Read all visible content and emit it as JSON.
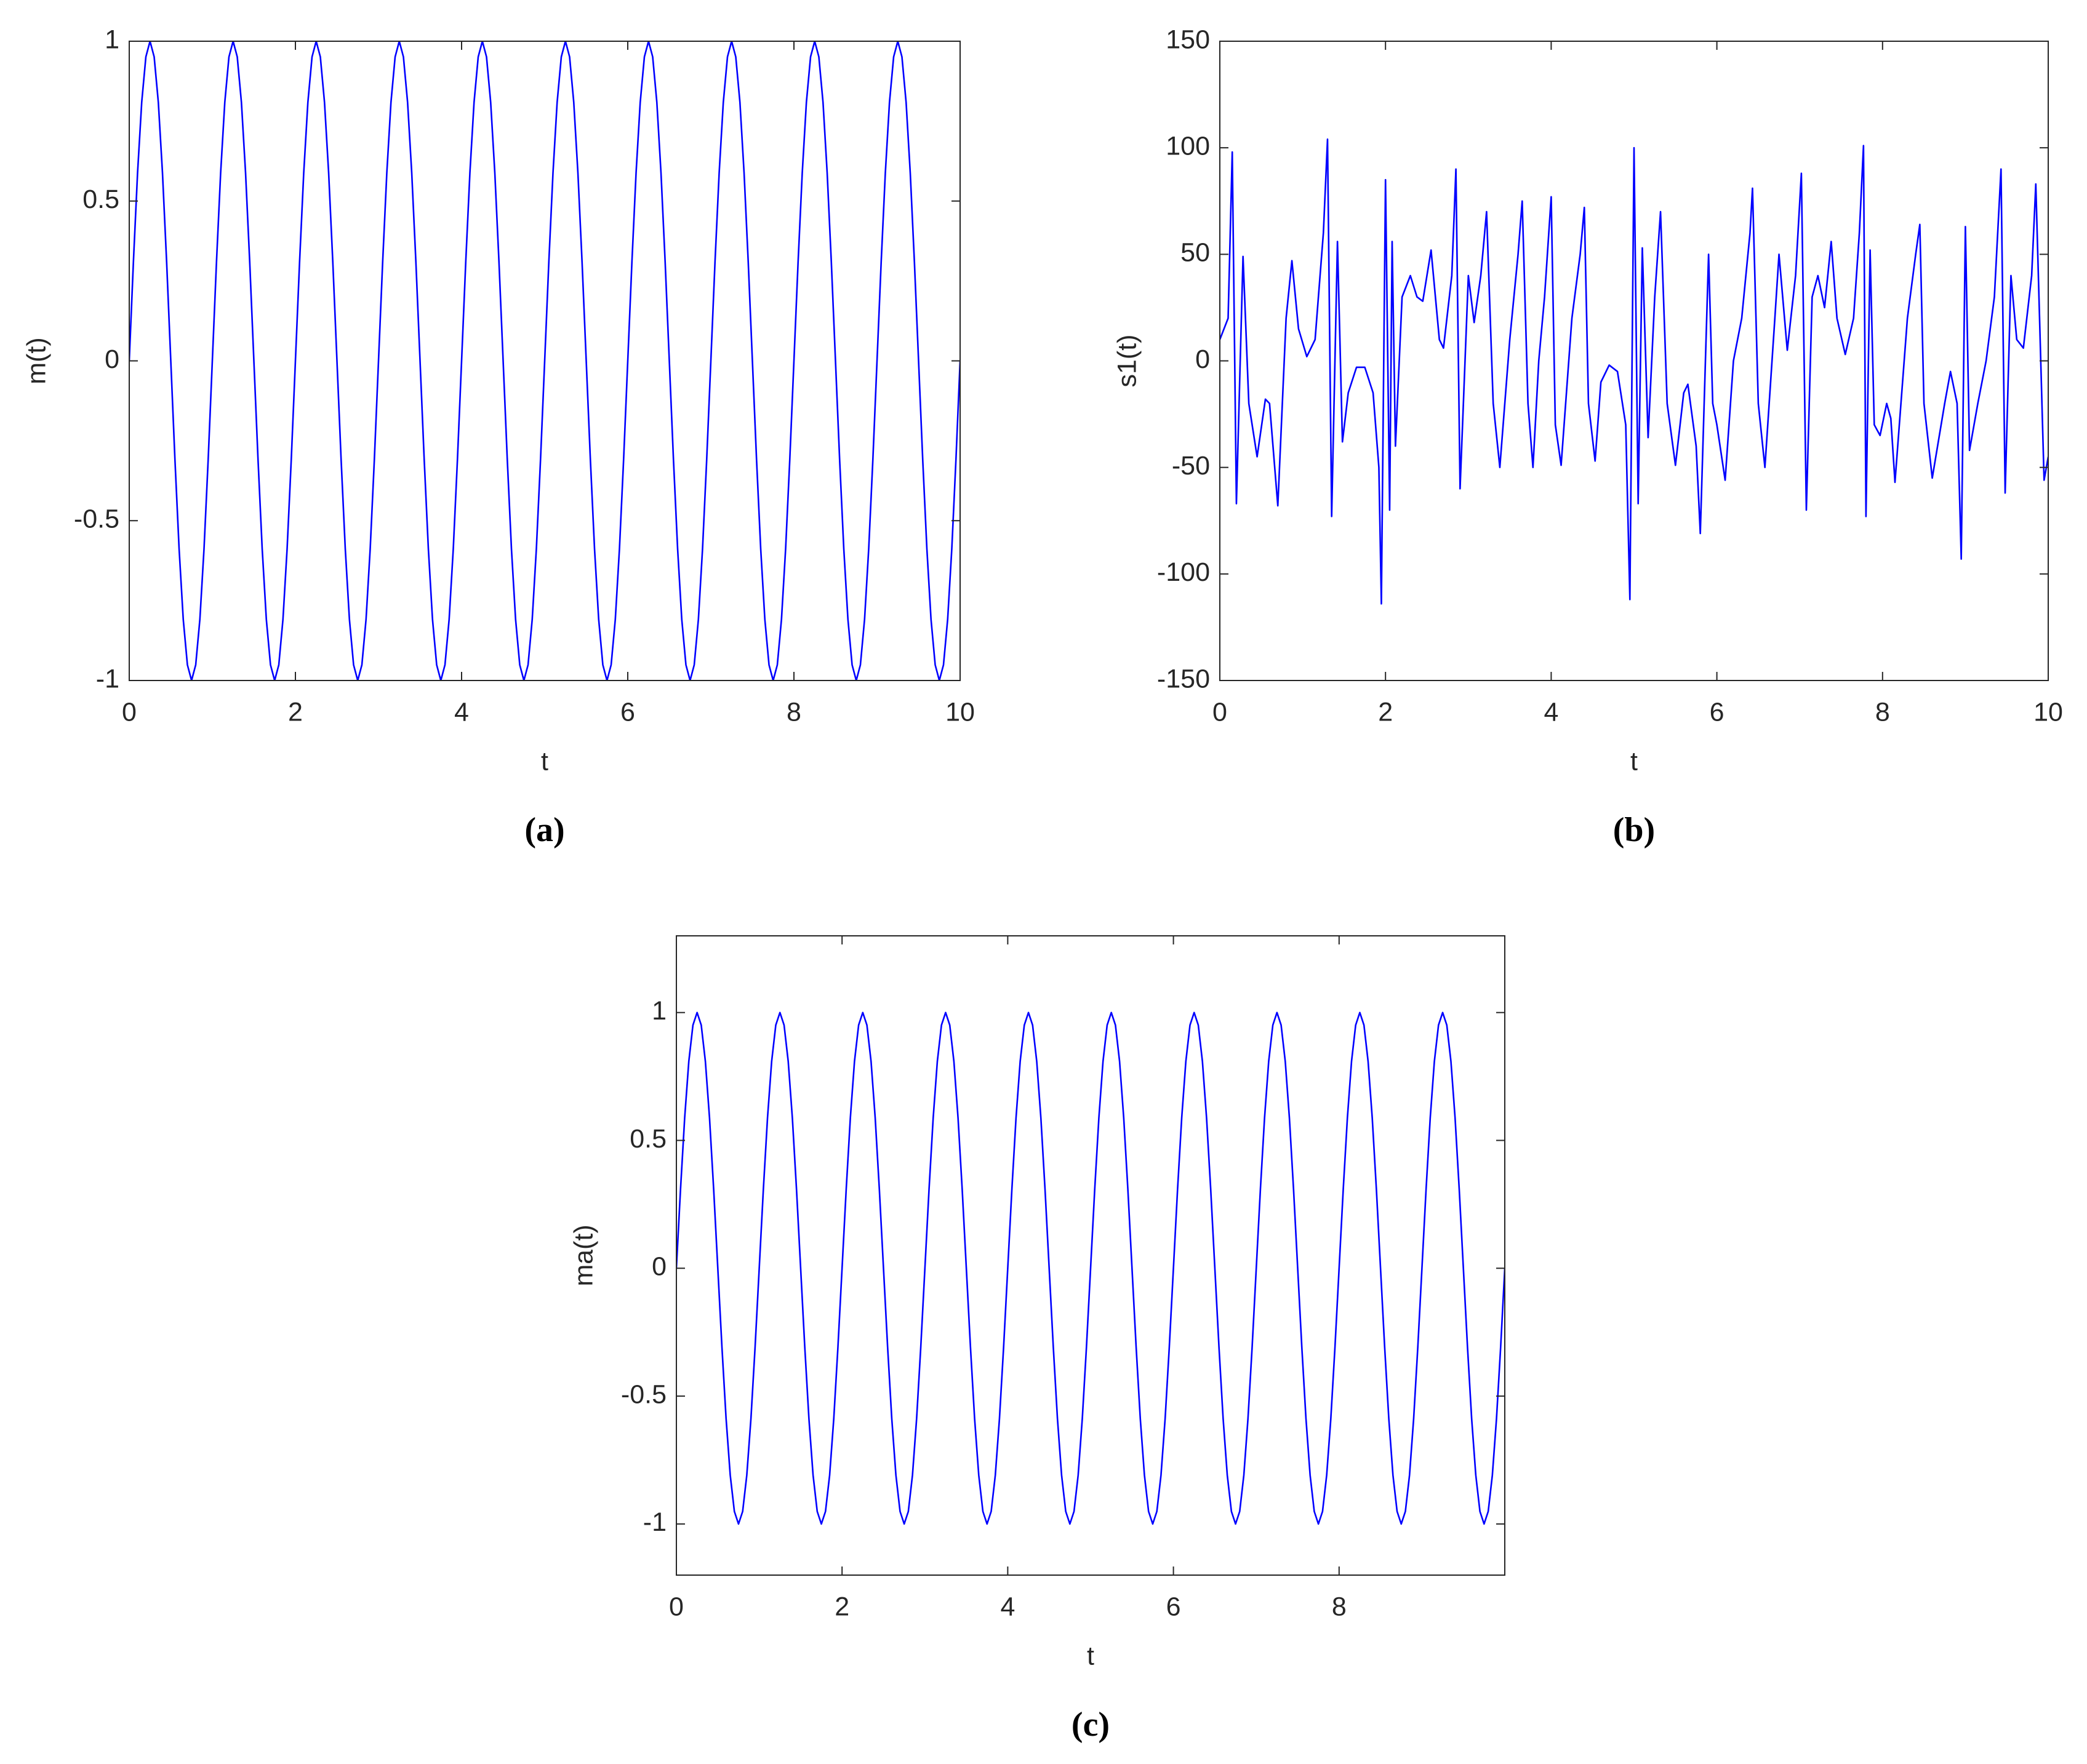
{
  "chart_data": [
    {
      "type": "line",
      "caption": "(a)",
      "x_label": "t",
      "y_label": "m(t)",
      "xlim": [
        0,
        10
      ],
      "xticks": [
        0,
        2,
        4,
        6,
        8,
        10
      ],
      "ylim": [
        -1,
        1
      ],
      "yticks": [
        -1,
        -0.5,
        0,
        0.5,
        1
      ],
      "grid": false,
      "x": [
        0,
        0.05,
        0.1,
        0.15,
        0.2,
        0.25,
        0.3,
        0.35,
        0.4,
        0.45,
        0.5,
        0.55,
        0.6,
        0.65,
        0.7,
        0.75,
        0.8,
        0.85,
        0.9,
        0.95,
        1,
        1.05,
        1.1,
        1.15,
        1.2,
        1.25,
        1.3,
        1.35,
        1.4,
        1.45,
        1.5,
        1.55,
        1.6,
        1.65,
        1.7,
        1.75,
        1.8,
        1.85,
        1.9,
        1.95,
        2,
        2.05,
        2.1,
        2.15,
        2.2,
        2.25,
        2.3,
        2.35,
        2.4,
        2.45,
        2.5,
        2.55,
        2.6,
        2.65,
        2.7,
        2.75,
        2.8,
        2.85,
        2.9,
        2.95,
        3,
        3.05,
        3.1,
        3.15,
        3.2,
        3.25,
        3.3,
        3.35,
        3.4,
        3.45,
        3.5,
        3.55,
        3.6,
        3.65,
        3.7,
        3.75,
        3.8,
        3.85,
        3.9,
        3.95,
        4,
        4.05,
        4.1,
        4.15,
        4.2,
        4.25,
        4.3,
        4.35,
        4.4,
        4.45,
        4.5,
        4.55,
        4.6,
        4.65,
        4.7,
        4.75,
        4.8,
        4.85,
        4.9,
        4.95,
        5,
        5.05,
        5.1,
        5.15,
        5.2,
        5.25,
        5.3,
        5.35,
        5.4,
        5.45,
        5.5,
        5.55,
        5.6,
        5.65,
        5.7,
        5.75,
        5.8,
        5.85,
        5.9,
        5.95,
        6,
        6.05,
        6.1,
        6.15,
        6.2,
        6.25,
        6.3,
        6.35,
        6.4,
        6.45,
        6.5,
        6.55,
        6.6,
        6.65,
        6.7,
        6.75,
        6.8,
        6.85,
        6.9,
        6.95,
        7,
        7.05,
        7.1,
        7.15,
        7.2,
        7.25,
        7.3,
        7.35,
        7.4,
        7.45,
        7.5,
        7.55,
        7.6,
        7.65,
        7.7,
        7.75,
        7.8,
        7.85,
        7.9,
        7.95,
        8,
        8.05,
        8.1,
        8.15,
        8.2,
        8.25,
        8.3,
        8.35,
        8.4,
        8.45,
        8.5,
        8.55,
        8.6,
        8.65,
        8.7,
        8.75,
        8.8,
        8.85,
        8.9,
        8.95,
        9,
        9.05,
        9.1,
        9.15,
        9.2,
        9.25,
        9.3,
        9.35,
        9.4,
        9.45,
        9.5,
        9.55,
        9.6,
        9.65,
        9.7,
        9.75,
        9.8,
        9.85,
        9.9,
        9.95,
        10
      ],
      "series": [
        {
          "color": "#0000ff",
          "values": [
            0,
            0.309,
            0.588,
            0.809,
            0.951,
            1,
            0.951,
            0.809,
            0.588,
            0.309,
            0,
            -0.309,
            -0.588,
            -0.809,
            -0.951,
            -1,
            -0.951,
            -0.809,
            -0.588,
            -0.309,
            0,
            0.309,
            0.588,
            0.809,
            0.951,
            1,
            0.951,
            0.809,
            0.588,
            0.309,
            0,
            -0.309,
            -0.588,
            -0.809,
            -0.951,
            -1,
            -0.951,
            -0.809,
            -0.588,
            -0.309,
            0,
            0.309,
            0.588,
            0.809,
            0.951,
            1,
            0.951,
            0.809,
            0.588,
            0.309,
            0,
            -0.309,
            -0.588,
            -0.809,
            -0.951,
            -1,
            -0.951,
            -0.809,
            -0.588,
            -0.309,
            0,
            0.309,
            0.588,
            0.809,
            0.951,
            1,
            0.951,
            0.809,
            0.588,
            0.309,
            0,
            -0.309,
            -0.588,
            -0.809,
            -0.951,
            -1,
            -0.951,
            -0.809,
            -0.588,
            -0.309,
            0,
            0.309,
            0.588,
            0.809,
            0.951,
            1,
            0.951,
            0.809,
            0.588,
            0.309,
            0,
            -0.309,
            -0.588,
            -0.809,
            -0.951,
            -1,
            -0.951,
            -0.809,
            -0.588,
            -0.309,
            0,
            0.309,
            0.588,
            0.809,
            0.951,
            1,
            0.951,
            0.809,
            0.588,
            0.309,
            0,
            -0.309,
            -0.588,
            -0.809,
            -0.951,
            -1,
            -0.951,
            -0.809,
            -0.588,
            -0.309,
            0,
            0.309,
            0.588,
            0.809,
            0.951,
            1,
            0.951,
            0.809,
            0.588,
            0.309,
            0,
            -0.309,
            -0.588,
            -0.809,
            -0.951,
            -1,
            -0.951,
            -0.809,
            -0.588,
            -0.309,
            0,
            0.309,
            0.588,
            0.809,
            0.951,
            1,
            0.951,
            0.809,
            0.588,
            0.309,
            0,
            -0.309,
            -0.588,
            -0.809,
            -0.951,
            -1,
            -0.951,
            -0.809,
            -0.588,
            -0.309,
            0,
            0.309,
            0.588,
            0.809,
            0.951,
            1,
            0.951,
            0.809,
            0.588,
            0.309,
            0,
            -0.309,
            -0.588,
            -0.809,
            -0.951,
            -1,
            -0.951,
            -0.809,
            -0.588,
            -0.309,
            0,
            0.309,
            0.588,
            0.809,
            0.951,
            1,
            0.951,
            0.809,
            0.588,
            0.309,
            0,
            -0.309,
            -0.588,
            -0.809,
            -0.951,
            -1,
            -0.951,
            -0.809,
            -0.588,
            -0.309,
            0
          ]
        }
      ]
    },
    {
      "type": "line",
      "caption": "(b)",
      "x_label": "t",
      "y_label": "s1(t)",
      "xlim": [
        0,
        10
      ],
      "xticks": [
        0,
        2,
        4,
        6,
        8,
        10
      ],
      "ylim": [
        -150,
        150
      ],
      "yticks": [
        -150,
        -100,
        -50,
        0,
        50,
        100,
        150
      ],
      "grid": false,
      "x": [
        0,
        0.1,
        0.15,
        0.2,
        0.28,
        0.35,
        0.45,
        0.55,
        0.6,
        0.7,
        0.8,
        0.87,
        0.95,
        1.05,
        1.15,
        1.25,
        1.3,
        1.35,
        1.42,
        1.48,
        1.55,
        1.65,
        1.75,
        1.85,
        1.92,
        1.95,
        2,
        2.05,
        2.08,
        2.12,
        2.2,
        2.3,
        2.38,
        2.45,
        2.55,
        2.65,
        2.7,
        2.8,
        2.85,
        2.9,
        3,
        3.07,
        3.15,
        3.22,
        3.3,
        3.38,
        3.5,
        3.6,
        3.65,
        3.72,
        3.78,
        3.85,
        3.92,
        4,
        4.05,
        4.12,
        4.25,
        4.35,
        4.4,
        4.45,
        4.53,
        4.6,
        4.7,
        4.8,
        4.9,
        4.95,
        5,
        5.05,
        5.1,
        5.17,
        5.25,
        5.32,
        5.4,
        5.5,
        5.6,
        5.65,
        5.75,
        5.8,
        5.9,
        5.95,
        6,
        6.1,
        6.2,
        6.3,
        6.4,
        6.43,
        6.5,
        6.58,
        6.7,
        6.75,
        6.85,
        6.95,
        7.02,
        7.08,
        7.15,
        7.22,
        7.3,
        7.38,
        7.45,
        7.55,
        7.65,
        7.72,
        7.77,
        7.8,
        7.85,
        7.9,
        7.97,
        8.05,
        8.1,
        8.15,
        8.3,
        8.4,
        8.45,
        8.5,
        8.6,
        8.75,
        8.82,
        8.9,
        8.95,
        9,
        9.05,
        9.15,
        9.25,
        9.35,
        9.43,
        9.48,
        9.55,
        9.62,
        9.7,
        9.8,
        9.85,
        9.95,
        10
      ],
      "series": [
        {
          "color": "#0000ff",
          "values": [
            10,
            20,
            98,
            -67,
            49,
            -20,
            -45,
            -18,
            -20,
            -68,
            20,
            47,
            15,
            2,
            10,
            60,
            104,
            -73,
            56,
            -38,
            -15,
            -3,
            -3,
            -15,
            -50,
            -114,
            85,
            -70,
            56,
            -40,
            30,
            40,
            30,
            28,
            52,
            10,
            6,
            40,
            90,
            -60,
            40,
            18,
            40,
            70,
            -20,
            -50,
            10,
            50,
            75,
            -20,
            -50,
            0,
            30,
            77,
            -30,
            -49,
            20,
            50,
            72,
            -20,
            -47,
            -10,
            -2,
            -5,
            -30,
            -112,
            100,
            -67,
            53,
            -36,
            30,
            70,
            -20,
            -49,
            -15,
            -11,
            -40,
            -81,
            50,
            -20,
            -30,
            -56,
            0,
            20,
            60,
            81,
            -20,
            -50,
            20,
            50,
            5,
            40,
            88,
            -70,
            30,
            40,
            25,
            56,
            20,
            3,
            20,
            60,
            101,
            -73,
            52,
            -30,
            -35,
            -20,
            -27,
            -57,
            20,
            50,
            64,
            -20,
            -55,
            -20,
            -5,
            -20,
            -93,
            63,
            -42,
            -20,
            0,
            30,
            90,
            -62,
            40,
            10,
            6,
            40,
            83,
            -56,
            -45
          ]
        }
      ]
    },
    {
      "type": "line",
      "caption": "(c)",
      "x_label": "t",
      "y_label": "ma(t)",
      "xlim": [
        0,
        10
      ],
      "xticks": [
        0,
        2,
        4,
        6,
        8
      ],
      "ylim": [
        -1.2,
        1.3
      ],
      "yticks": [
        -1,
        -0.5,
        0,
        0.5,
        1
      ],
      "grid": false,
      "x": [
        0,
        0.05,
        0.1,
        0.15,
        0.2,
        0.25,
        0.3,
        0.35,
        0.4,
        0.45,
        0.5,
        0.55,
        0.6,
        0.65,
        0.7,
        0.75,
        0.8,
        0.85,
        0.9,
        0.95,
        1,
        1.05,
        1.1,
        1.15,
        1.2,
        1.25,
        1.3,
        1.35,
        1.4,
        1.45,
        1.5,
        1.55,
        1.6,
        1.65,
        1.7,
        1.75,
        1.8,
        1.85,
        1.9,
        1.95,
        2,
        2.05,
        2.1,
        2.15,
        2.2,
        2.25,
        2.3,
        2.35,
        2.4,
        2.45,
        2.5,
        2.55,
        2.6,
        2.65,
        2.7,
        2.75,
        2.8,
        2.85,
        2.9,
        2.95,
        3,
        3.05,
        3.1,
        3.15,
        3.2,
        3.25,
        3.3,
        3.35,
        3.4,
        3.45,
        3.5,
        3.55,
        3.6,
        3.65,
        3.7,
        3.75,
        3.8,
        3.85,
        3.9,
        3.95,
        4,
        4.05,
        4.1,
        4.15,
        4.2,
        4.25,
        4.3,
        4.35,
        4.4,
        4.45,
        4.5,
        4.55,
        4.6,
        4.65,
        4.7,
        4.75,
        4.8,
        4.85,
        4.9,
        4.95,
        5,
        5.05,
        5.1,
        5.15,
        5.2,
        5.25,
        5.3,
        5.35,
        5.4,
        5.45,
        5.5,
        5.55,
        5.6,
        5.65,
        5.7,
        5.75,
        5.8,
        5.85,
        5.9,
        5.95,
        6,
        6.05,
        6.1,
        6.15,
        6.2,
        6.25,
        6.3,
        6.35,
        6.4,
        6.45,
        6.5,
        6.55,
        6.6,
        6.65,
        6.7,
        6.75,
        6.8,
        6.85,
        6.9,
        6.95,
        7,
        7.05,
        7.1,
        7.15,
        7.2,
        7.25,
        7.3,
        7.35,
        7.4,
        7.45,
        7.5,
        7.55,
        7.6,
        7.65,
        7.7,
        7.75,
        7.8,
        7.85,
        7.9,
        7.95,
        8,
        8.05,
        8.1,
        8.15,
        8.2,
        8.25,
        8.3,
        8.35,
        8.4,
        8.45,
        8.5,
        8.55,
        8.6,
        8.65,
        8.7,
        8.75,
        8.8,
        8.85,
        8.9,
        8.95,
        9,
        9.05,
        9.1,
        9.15,
        9.2,
        9.25,
        9.3,
        9.35,
        9.4,
        9.45,
        9.5,
        9.55,
        9.6,
        9.65,
        9.7,
        9.75,
        9.8,
        9.85,
        9.9,
        9.95,
        10
      ],
      "series": [
        {
          "color": "#0000ff",
          "values": [
            0,
            0.309,
            0.588,
            0.809,
            0.951,
            1,
            0.951,
            0.809,
            0.588,
            0.309,
            0,
            -0.309,
            -0.588,
            -0.809,
            -0.951,
            -1,
            -0.951,
            -0.809,
            -0.588,
            -0.309,
            0,
            0.309,
            0.588,
            0.809,
            0.951,
            1,
            0.951,
            0.809,
            0.588,
            0.309,
            0,
            -0.309,
            -0.588,
            -0.809,
            -0.951,
            -1,
            -0.951,
            -0.809,
            -0.588,
            -0.309,
            0,
            0.309,
            0.588,
            0.809,
            0.951,
            1,
            0.951,
            0.809,
            0.588,
            0.309,
            0,
            -0.309,
            -0.588,
            -0.809,
            -0.951,
            -1,
            -0.951,
            -0.809,
            -0.588,
            -0.309,
            0,
            0.309,
            0.588,
            0.809,
            0.951,
            1,
            0.951,
            0.809,
            0.588,
            0.309,
            0,
            -0.309,
            -0.588,
            -0.809,
            -0.951,
            -1,
            -0.951,
            -0.809,
            -0.588,
            -0.309,
            0,
            0.309,
            0.588,
            0.809,
            0.951,
            1,
            0.951,
            0.809,
            0.588,
            0.309,
            0,
            -0.309,
            -0.588,
            -0.809,
            -0.951,
            -1,
            -0.951,
            -0.809,
            -0.588,
            -0.309,
            0,
            0.309,
            0.588,
            0.809,
            0.951,
            1,
            0.951,
            0.809,
            0.588,
            0.309,
            0,
            -0.309,
            -0.588,
            -0.809,
            -0.951,
            -1,
            -0.951,
            -0.809,
            -0.588,
            -0.309,
            0,
            0.309,
            0.588,
            0.809,
            0.951,
            1,
            0.951,
            0.809,
            0.588,
            0.309,
            0,
            -0.309,
            -0.588,
            -0.809,
            -0.951,
            -1,
            -0.951,
            -0.809,
            -0.588,
            -0.309,
            0,
            0.309,
            0.588,
            0.809,
            0.951,
            1,
            0.951,
            0.809,
            0.588,
            0.309,
            0,
            -0.309,
            -0.588,
            -0.809,
            -0.951,
            -1,
            -0.951,
            -0.809,
            -0.588,
            -0.309,
            0,
            0.309,
            0.588,
            0.809,
            0.951,
            1,
            0.951,
            0.809,
            0.588,
            0.309,
            0,
            -0.309,
            -0.588,
            -0.809,
            -0.951,
            -1,
            -0.951,
            -0.809,
            -0.588,
            -0.309,
            0,
            0.309,
            0.588,
            0.809,
            0.951,
            1,
            0.951,
            0.809,
            0.588,
            0.309,
            0,
            -0.309,
            -0.588,
            -0.809,
            -0.951,
            -1,
            -0.951,
            -0.809,
            -0.588,
            -0.309,
            0
          ]
        }
      ]
    }
  ]
}
